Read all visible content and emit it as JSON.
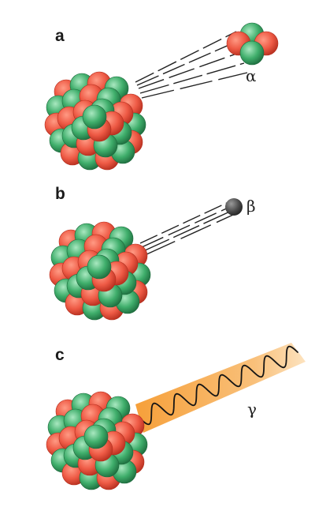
{
  "colors": {
    "proton_light": "#ff9a84",
    "proton": "#ee5a45",
    "proton_dark": "#b52e1e",
    "neutron_light": "#a9e8c0",
    "neutron": "#3fae6b",
    "neutron_dark": "#1d6b3d",
    "electron": "#4a4a4a",
    "gamma_band": "#f6a03a",
    "gamma_band_fade": "#fde3bf",
    "ink": "#1a1a1a"
  },
  "panels": [
    {
      "letter": "a",
      "particle": "alpha",
      "symbol": "α"
    },
    {
      "letter": "b",
      "particle": "beta",
      "symbol": "β"
    },
    {
      "letter": "c",
      "particle": "gamma",
      "symbol": "γ"
    }
  ]
}
